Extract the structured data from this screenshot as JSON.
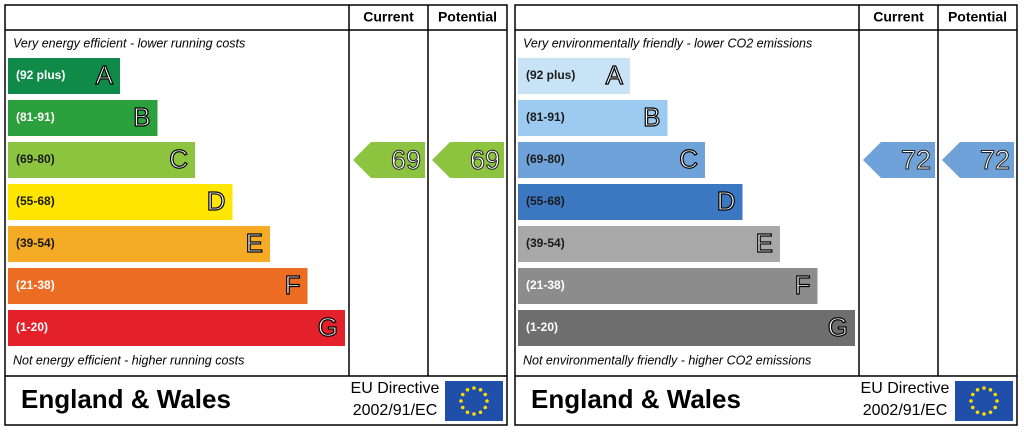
{
  "panels": [
    {
      "headers": [
        "Current",
        "Potential"
      ],
      "top_note": "Very energy efficient - lower running costs",
      "bottom_note": "Not energy efficient - higher running costs",
      "bands": [
        {
          "range": "(92 plus)",
          "letter": "A",
          "color": "#0f8a48",
          "text_color": "#ffffff"
        },
        {
          "range": "(81-91)",
          "letter": "B",
          "color": "#2ca03c",
          "text_color": "#ffffff"
        },
        {
          "range": "(69-80)",
          "letter": "C",
          "color": "#8cc43f",
          "text_color": "#1a1a1a"
        },
        {
          "range": "(55-68)",
          "letter": "D",
          "color": "#ffe600",
          "text_color": "#1a1a1a"
        },
        {
          "range": "(39-54)",
          "letter": "E",
          "color": "#f5ab25",
          "text_color": "#1a1a1a"
        },
        {
          "range": "(21-38)",
          "letter": "F",
          "color": "#ec6c24",
          "text_color": "#ffffff"
        },
        {
          "range": "(1-20)",
          "letter": "G",
          "color": "#e4202b",
          "text_color": "#ffffff"
        }
      ],
      "current": 69,
      "potential": 69,
      "region": "England & Wales",
      "directive": [
        "EU Directive",
        "2002/91/EC"
      ]
    },
    {
      "headers": [
        "Current",
        "Potential"
      ],
      "top_note": "Very environmentally friendly - lower CO2 emissions",
      "bottom_note": "Not environmentally friendly - higher CO2 emissions",
      "bands": [
        {
          "range": "(92 plus)",
          "letter": "A",
          "color": "#c9e3f6",
          "text_color": "#1a1a1a"
        },
        {
          "range": "(81-91)",
          "letter": "B",
          "color": "#9ccaf0",
          "text_color": "#1a1a1a"
        },
        {
          "range": "(69-80)",
          "letter": "C",
          "color": "#6ea2d8",
          "text_color": "#1a1a1a"
        },
        {
          "range": "(55-68)",
          "letter": "D",
          "color": "#3c78c2",
          "text_color": "#1a1a1a"
        },
        {
          "range": "(39-54)",
          "letter": "E",
          "color": "#a8a8a8",
          "text_color": "#1a1a1a"
        },
        {
          "range": "(21-38)",
          "letter": "F",
          "color": "#8c8c8c",
          "text_color": "#ffffff"
        },
        {
          "range": "(1-20)",
          "letter": "G",
          "color": "#6e6e6e",
          "text_color": "#ffffff"
        }
      ],
      "current": 72,
      "potential": 72,
      "region": "England & Wales",
      "directive": [
        "EU Directive",
        "2002/91/EC"
      ]
    }
  ]
}
